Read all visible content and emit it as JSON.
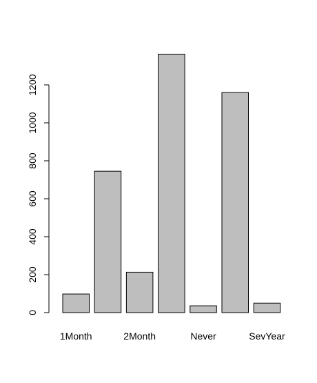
{
  "chart_data": {
    "type": "bar",
    "categories": [
      "1Month",
      "",
      "2Month",
      "",
      "Never",
      "",
      "SevYear"
    ],
    "values": [
      98,
      745,
      213,
      1362,
      36,
      1160,
      50
    ],
    "title": "",
    "xlabel": "",
    "ylabel": "",
    "ylim": [
      0,
      1362
    ],
    "y_ticks": [
      0,
      200,
      400,
      600,
      800,
      1000,
      1200
    ],
    "grid": false,
    "legend": "none",
    "bar_fill": "#bebebe",
    "bar_stroke": "#000000"
  }
}
